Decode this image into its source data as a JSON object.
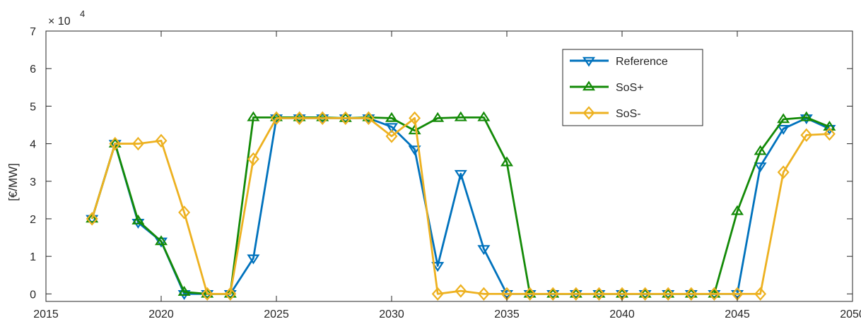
{
  "chart_data": {
    "type": "line",
    "title": "",
    "xlabel": "",
    "ylabel": "[€/MW]",
    "y_scale_label": {
      "base": "× 10",
      "exponent": "4"
    },
    "xlim": [
      2015,
      2050
    ],
    "ylim": [
      -2000,
      70000
    ],
    "x_ticks": [
      2015,
      2020,
      2025,
      2030,
      2035,
      2040,
      2045,
      2050
    ],
    "y_ticks": [
      0,
      10000,
      20000,
      30000,
      40000,
      50000,
      60000,
      70000
    ],
    "y_tick_labels": [
      "0",
      "1",
      "2",
      "3",
      "4",
      "5",
      "6",
      "7"
    ],
    "grid": false,
    "legend_position": "top-right",
    "x": [
      2017,
      2018,
      2019,
      2020,
      2021,
      2022,
      2023,
      2024,
      2025,
      2026,
      2027,
      2028,
      2029,
      2030,
      2031,
      2032,
      2033,
      2034,
      2035,
      2036,
      2037,
      2038,
      2039,
      2040,
      2041,
      2042,
      2043,
      2044,
      2045,
      2046,
      2047,
      2048,
      2049
    ],
    "series": [
      {
        "name": "Reference",
        "color": "#0072BD",
        "marker": "triangle-down",
        "values": [
          20000,
          40000,
          19000,
          14000,
          0,
          0,
          0,
          9500,
          46800,
          46800,
          46800,
          46800,
          46800,
          44500,
          38500,
          7500,
          32000,
          12000,
          0,
          0,
          0,
          0,
          0,
          0,
          0,
          0,
          0,
          0,
          0,
          34000,
          44000,
          46800,
          44000
        ]
      },
      {
        "name": "SoS+",
        "color": "#138A07",
        "marker": "triangle-up",
        "values": [
          20000,
          40000,
          19500,
          14000,
          500,
          0,
          0,
          47000,
          47000,
          47000,
          47000,
          46800,
          47000,
          46800,
          43500,
          46800,
          47000,
          47000,
          35000,
          0,
          0,
          0,
          0,
          0,
          0,
          0,
          0,
          0,
          22000,
          38000,
          46500,
          47000,
          44500
        ]
      },
      {
        "name": "SoS-",
        "color": "#EDB120",
        "marker": "diamond",
        "values": [
          20000,
          40000,
          40000,
          40800,
          21700,
          0,
          0,
          35900,
          46800,
          46800,
          46800,
          46800,
          46800,
          42000,
          46800,
          0,
          800,
          0,
          0,
          0,
          0,
          0,
          0,
          0,
          0,
          0,
          0,
          0,
          0,
          0,
          32400,
          42300,
          42600
        ]
      }
    ]
  }
}
